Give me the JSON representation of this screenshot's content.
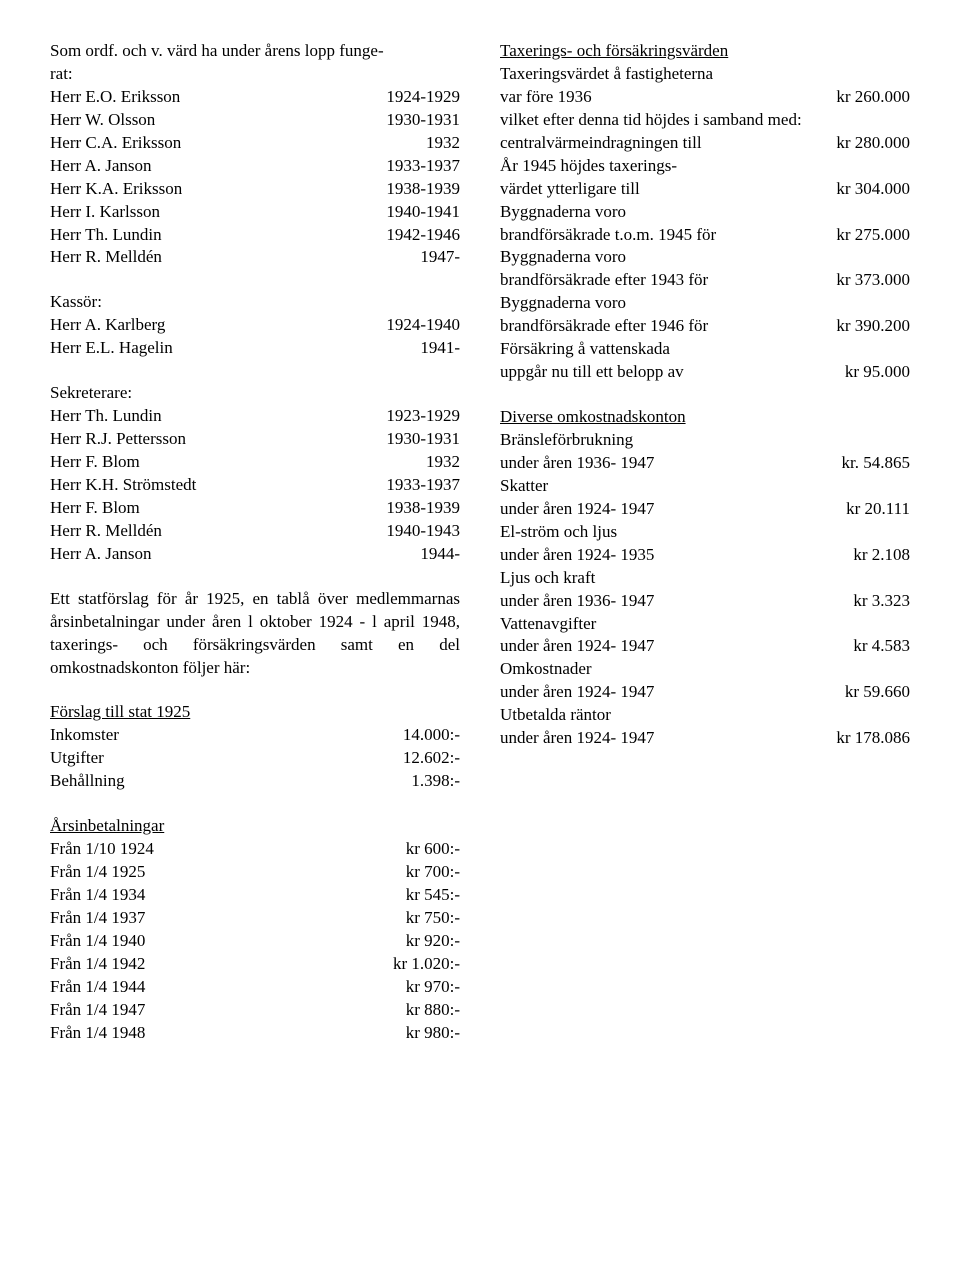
{
  "left": {
    "intro_line1": "Som ordf. och v. värd ha under årens lopp funge-",
    "intro_line2": "rat:",
    "ordf": [
      {
        "name": "Herr E.O. Eriksson",
        "years": "1924-1929"
      },
      {
        "name": "Herr W. Olsson",
        "years": "1930-1931"
      },
      {
        "name": "Herr  C.A. Eriksson",
        "years": "1932"
      },
      {
        "name": "Herr A. Janson",
        "years": "1933-1937"
      },
      {
        "name": "Herr K.A. Eriksson",
        "years": "1938-1939"
      },
      {
        "name": "Herr I. Karlsson",
        "years": "1940-1941"
      },
      {
        "name": "Herr Th. Lundin",
        "years": "1942-1946"
      },
      {
        "name": "Herr R. Melldén",
        "years": "1947-"
      }
    ],
    "kassor_heading": "Kassör:",
    "kassor": [
      {
        "name": "Herr A. Karlberg",
        "years": "1924-1940"
      },
      {
        "name": "Herr E.L. Hagelin",
        "years": "1941-"
      }
    ],
    "sekr_heading": "Sekreterare:",
    "sekr": [
      {
        "name": "Herr Th. Lundin",
        "years": "1923-1929"
      },
      {
        "name": "Herr R.J. Pettersson",
        "years": "1930-1931"
      },
      {
        "name": "Herr F. Blom",
        "years": "1932"
      },
      {
        "name": "Herr K.H. Strömstedt",
        "years": "1933-1937"
      },
      {
        "name": "Herr F. Blom",
        "years": "1938-1939"
      },
      {
        "name": "Herr R. Melldén",
        "years": "1940-1943"
      },
      {
        "name": "Herr A. Janson",
        "years": "1944-"
      }
    ],
    "para": "Ett statförslag för år 1925, en tablå över medlemmarnas årsinbetalningar under åren l oktober 1924 - l april 1948, taxerings- och försäkringsvärden samt en del omkostnadskonton följer här:",
    "stat_heading": "Förslag till stat 1925",
    "stat": [
      {
        "label": "Inkomster",
        "value": "14.000:-"
      },
      {
        "label": "Utgifter",
        "value": "12.602:-"
      },
      {
        "label": "Behållning",
        "value": "1.398:-"
      }
    ],
    "arsin_heading": "Årsinbetalningar",
    "arsin": [
      {
        "label": "Från 1/10 1924",
        "value": "kr 600:-"
      },
      {
        "label": "Från 1/4 1925",
        "value": "kr 700:-"
      },
      {
        "label": "Från 1/4 1934",
        "value": "kr 545:-"
      },
      {
        "label": "Från 1/4 1937",
        "value": "kr 750:-"
      },
      {
        "label": "Från 1/4 1940",
        "value": "kr 920:-"
      },
      {
        "label": "Från 1/4 1942",
        "value": "kr 1.020:-"
      },
      {
        "label": "Från 1/4 1944",
        "value": "kr 970:-"
      },
      {
        "label": "Från 1/4 1947",
        "value": "kr 880:-"
      },
      {
        "label": "Från 1/4 1948",
        "value": "kr 980:-"
      }
    ]
  },
  "right": {
    "tax_heading": "Taxerings- och försäkringsvärden",
    "tax_lines": [
      {
        "label": "Taxeringsvärdet å fastigheterna",
        "value": ""
      },
      {
        "label": "var före 1936",
        "value": "kr 260.000"
      },
      {
        "label": "vilket efter denna tid höjdes i samband med:",
        "value": ""
      },
      {
        "label": "centralvärmeindragningen till",
        "value": "kr 280.000"
      },
      {
        "label": "År 1945 höjdes taxerings-",
        "value": ""
      },
      {
        "label": "värdet ytterligare till",
        "value": "kr 304.000"
      },
      {
        "label": "Byggnaderna voro",
        "value": ""
      },
      {
        "label": "brandförsäkrade t.o.m. 1945 för",
        "value": "kr 275.000"
      },
      {
        "label": "Byggnaderna voro",
        "value": ""
      },
      {
        "label": "brandförsäkrade efter 1943 för",
        "value": "kr 373.000"
      },
      {
        "label": "Byggnaderna voro",
        "value": ""
      },
      {
        "label": "brandförsäkrade efter 1946 för",
        "value": "kr 390.200"
      },
      {
        "label": "Försäkring å vattenskada",
        "value": ""
      },
      {
        "label": "uppgår nu till ett belopp av",
        "value": "kr 95.000"
      }
    ],
    "div_heading": "Diverse omkostnadskonton",
    "div_lines": [
      {
        "label": "Bränsleförbrukning",
        "value": ""
      },
      {
        "label": "under åren 1936- 1947",
        "value": "kr. 54.865"
      },
      {
        "label": "Skatter",
        "value": ""
      },
      {
        "label": "under åren 1924- 1947",
        "value": "kr 20.111"
      },
      {
        "label": "El-ström och ljus",
        "value": ""
      },
      {
        "label": "under åren 1924- 1935",
        "value": "kr 2.108"
      },
      {
        "label": "Ljus och kraft",
        "value": ""
      },
      {
        "label": "under åren 1936- 1947",
        "value": "kr 3.323"
      },
      {
        "label": "Vattenavgifter",
        "value": ""
      },
      {
        "label": "under åren 1924- 1947",
        "value": "kr 4.583"
      },
      {
        "label": "Omkostnader",
        "value": ""
      },
      {
        "label": "under åren 1924- 1947",
        "value": "kr 59.660"
      },
      {
        "label": "Utbetalda räntor",
        "value": ""
      },
      {
        "label": "under åren 1924- 1947",
        "value": "kr 178.086"
      }
    ]
  }
}
